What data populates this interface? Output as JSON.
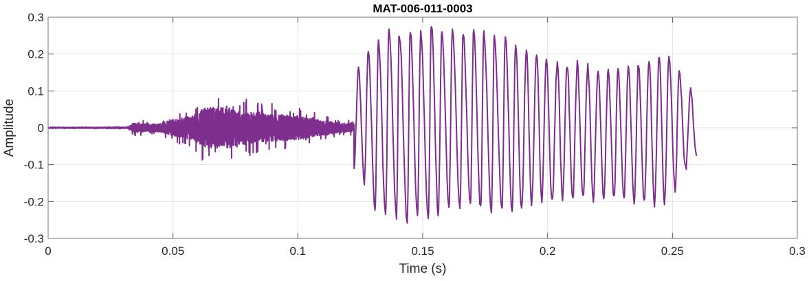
{
  "chart_data": {
    "type": "line",
    "title": "MAT-006-011-0003",
    "xlabel": "Time (s)",
    "ylabel": "Amplitude",
    "xlim": [
      0,
      0.3
    ],
    "ylim": [
      -0.3,
      0.3
    ],
    "xticks": [
      0,
      0.05,
      0.1,
      0.15,
      0.2,
      0.25,
      0.3
    ],
    "xtick_labels": [
      "0",
      "0.05",
      "0.1",
      "0.15",
      "0.2",
      "0.25",
      "0.3"
    ],
    "yticks": [
      -0.3,
      -0.2,
      -0.1,
      0,
      0.1,
      0.2,
      0.3
    ],
    "ytick_labels": [
      "-0.3",
      "-0.2",
      "-0.1",
      "0",
      "0.1",
      "0.2",
      "0.3"
    ],
    "grid": true,
    "line_color": "#7E2F8E",
    "signal_end": 0.261,
    "noise_envelope": [
      [
        0,
        0.002
      ],
      [
        0.032,
        0.003
      ],
      [
        0.034,
        0.022
      ],
      [
        0.045,
        0.02
      ],
      [
        0.05,
        0.04
      ],
      [
        0.058,
        0.06
      ],
      [
        0.063,
        0.1
      ],
      [
        0.072,
        0.1
      ],
      [
        0.078,
        0.08
      ],
      [
        0.09,
        0.065
      ],
      [
        0.1,
        0.06
      ],
      [
        0.108,
        0.04
      ],
      [
        0.116,
        0.025
      ],
      [
        0.121,
        0.02
      ]
    ],
    "voiced_extrema": [
      [
        0.1225,
        -0.101
      ],
      [
        0.1243,
        0.155
      ],
      [
        0.1266,
        -0.15
      ],
      [
        0.1282,
        0.204
      ],
      [
        0.1309,
        -0.215
      ],
      [
        0.1323,
        0.236
      ],
      [
        0.1351,
        -0.237
      ],
      [
        0.1365,
        0.27
      ],
      [
        0.1395,
        -0.243
      ],
      [
        0.1406,
        0.258
      ],
      [
        0.1438,
        -0.253
      ],
      [
        0.145,
        0.263
      ],
      [
        0.1479,
        -0.231
      ],
      [
        0.1492,
        0.259
      ],
      [
        0.1522,
        -0.243
      ],
      [
        0.1535,
        0.282
      ],
      [
        0.1562,
        -0.231
      ],
      [
        0.1577,
        0.264
      ],
      [
        0.1605,
        -0.215
      ],
      [
        0.1619,
        0.269
      ],
      [
        0.1649,
        -0.222
      ],
      [
        0.1662,
        0.259
      ],
      [
        0.1691,
        -0.206
      ],
      [
        0.1704,
        0.264
      ],
      [
        0.1732,
        -0.218
      ],
      [
        0.1745,
        0.255
      ],
      [
        0.1775,
        -0.225
      ],
      [
        0.1787,
        0.25
      ],
      [
        0.1817,
        -0.225
      ],
      [
        0.1831,
        0.25
      ],
      [
        0.1858,
        -0.231
      ],
      [
        0.1872,
        0.23
      ],
      [
        0.1896,
        -0.222
      ],
      [
        0.1915,
        0.211
      ],
      [
        0.1936,
        -0.206
      ],
      [
        0.1956,
        0.204
      ],
      [
        0.1977,
        -0.194
      ],
      [
        0.1995,
        0.194
      ],
      [
        0.2018,
        -0.203
      ],
      [
        0.2039,
        0.179
      ],
      [
        0.206,
        -0.194
      ],
      [
        0.2078,
        0.173
      ],
      [
        0.2101,
        -0.191
      ],
      [
        0.2119,
        0.173
      ],
      [
        0.2142,
        -0.192
      ],
      [
        0.2161,
        0.166
      ],
      [
        0.2183,
        -0.192
      ],
      [
        0.2202,
        0.16
      ],
      [
        0.2225,
        -0.191
      ],
      [
        0.2243,
        0.157
      ],
      [
        0.2266,
        -0.192
      ],
      [
        0.2282,
        0.157
      ],
      [
        0.2306,
        -0.191
      ],
      [
        0.2323,
        0.161
      ],
      [
        0.2347,
        -0.199
      ],
      [
        0.2364,
        0.174
      ],
      [
        0.2387,
        -0.203
      ],
      [
        0.2406,
        0.186
      ],
      [
        0.2428,
        -0.207
      ],
      [
        0.2447,
        0.197
      ],
      [
        0.2468,
        -0.2
      ],
      [
        0.2486,
        0.199
      ],
      [
        0.2511,
        -0.169
      ],
      [
        0.2527,
        0.157
      ],
      [
        0.2553,
        -0.113
      ],
      [
        0.2573,
        0.101
      ],
      [
        0.2596,
        -0.076
      ]
    ]
  }
}
